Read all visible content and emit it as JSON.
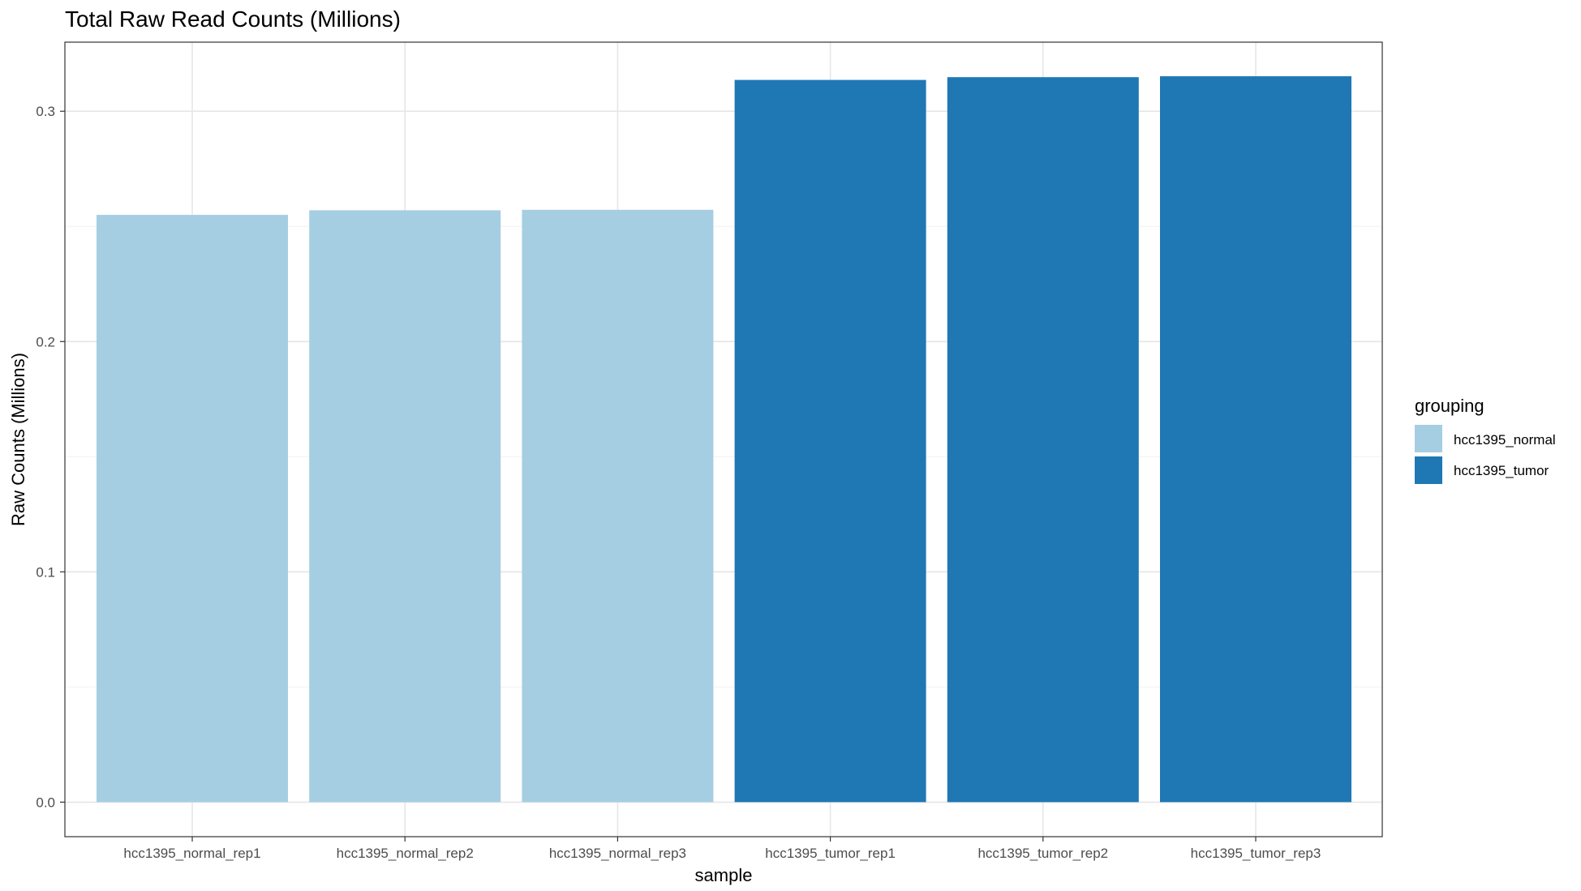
{
  "chart_data": {
    "type": "bar",
    "title": "Total Raw Read Counts (Millions)",
    "xlabel": "sample",
    "ylabel": "Raw Counts (Millions)",
    "categories": [
      "hcc1395_normal_rep1",
      "hcc1395_normal_rep2",
      "hcc1395_normal_rep3",
      "hcc1395_tumor_rep1",
      "hcc1395_tumor_rep2",
      "hcc1395_tumor_rep3"
    ],
    "values": [
      0.255,
      0.257,
      0.2572,
      0.3136,
      0.3148,
      0.3152
    ],
    "groups": [
      "hcc1395_normal",
      "hcc1395_normal",
      "hcc1395_normal",
      "hcc1395_tumor",
      "hcc1395_tumor",
      "hcc1395_tumor"
    ],
    "ylim": [
      -0.015,
      0.33
    ],
    "yticks": [
      0.0,
      0.1,
      0.2,
      0.3
    ],
    "ytick_labels": [
      "0.0",
      "0.1",
      "0.2",
      "0.3"
    ],
    "grid": true,
    "legend": {
      "title": "grouping",
      "position": "right",
      "entries": [
        {
          "label": "hcc1395_normal",
          "color": "#a6cee3"
        },
        {
          "label": "hcc1395_tumor",
          "color": "#1f78b4"
        }
      ]
    }
  }
}
